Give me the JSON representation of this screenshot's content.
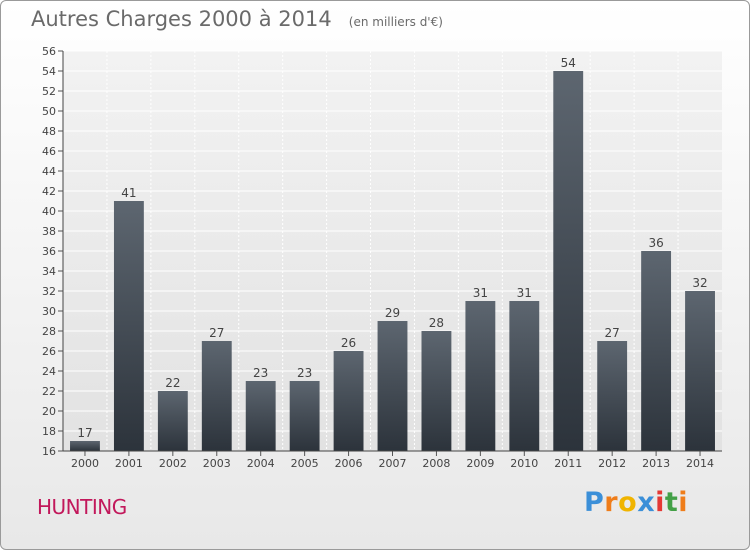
{
  "header": {
    "title": "Autres Charges 2000 à 2014",
    "subtitle": "(en milliers d'€)"
  },
  "footer": {
    "commune": "HUNTING",
    "brand": [
      "P",
      "r",
      "o",
      "x",
      "i",
      "t",
      "i"
    ],
    "brand_colors": [
      "#3b8fd8",
      "#ef7d1a",
      "#f0b400",
      "#3b8fd8",
      "#e53935",
      "#43a047",
      "#ef7d1a"
    ],
    "commune_color": "#c2185b"
  },
  "chart_data": {
    "type": "bar",
    "title": "Autres Charges 2000 à 2014",
    "subtitle": "(en milliers d'€)",
    "categories": [
      "2000",
      "2001",
      "2002",
      "2003",
      "2004",
      "2005",
      "2006",
      "2007",
      "2008",
      "2009",
      "2010",
      "2011",
      "2012",
      "2013",
      "2014"
    ],
    "values": [
      17,
      41,
      22,
      27,
      23,
      23,
      26,
      29,
      28,
      31,
      31,
      54,
      27,
      36,
      32
    ],
    "data_labels": [
      "17",
      "41",
      "22",
      "27",
      "23",
      "23",
      "26",
      "29",
      "28",
      "31",
      "31",
      "54",
      "27",
      "36",
      "32"
    ],
    "ylim": [
      16,
      56
    ],
    "yticks": [
      16,
      18,
      20,
      22,
      24,
      26,
      28,
      30,
      32,
      34,
      36,
      38,
      40,
      42,
      44,
      46,
      48,
      50,
      52,
      54,
      56
    ],
    "grid": true,
    "bar_color_top": "#5d6670",
    "bar_color_bottom": "#2c333b",
    "plot_background": "#e8e8e8"
  }
}
